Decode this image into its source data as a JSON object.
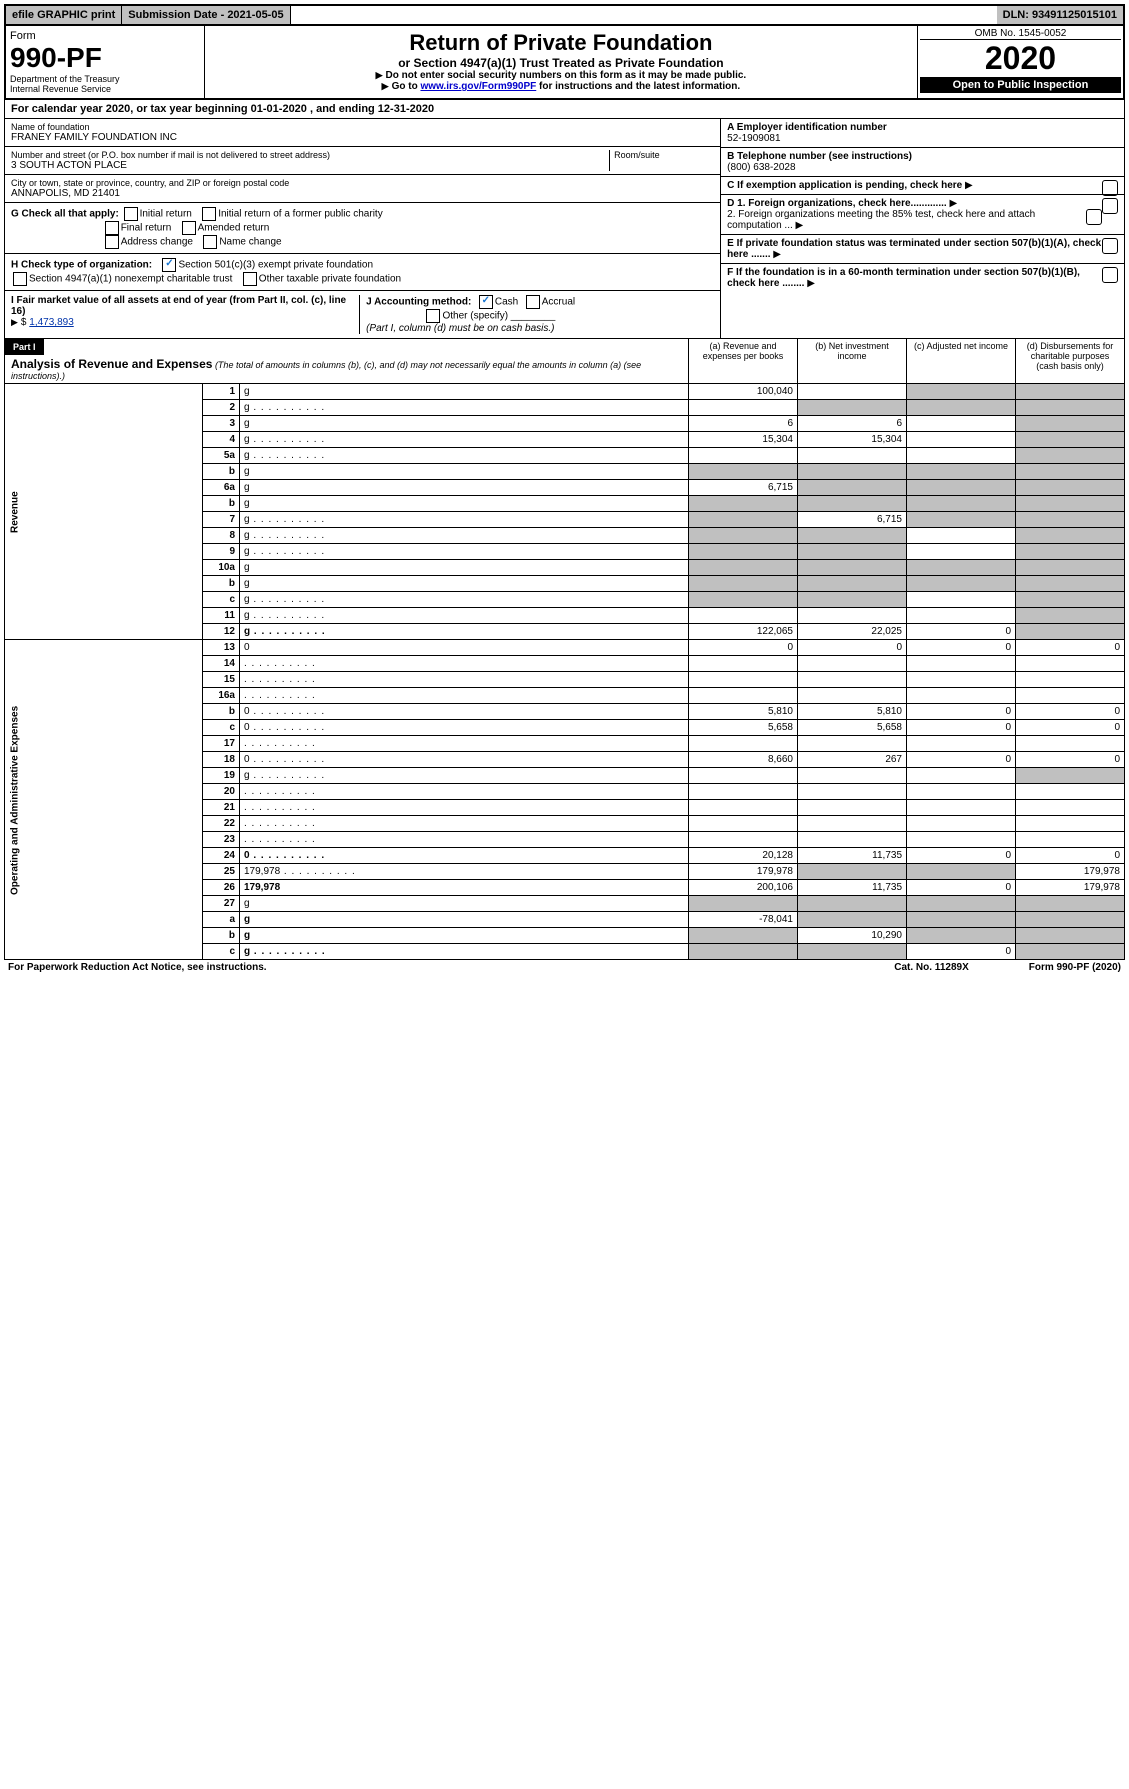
{
  "topbar": {
    "efile": "efile GRAPHIC print",
    "submission": "Submission Date - 2021-05-05",
    "dln": "DLN: 93491125015101"
  },
  "header": {
    "form_label": "Form",
    "form_number": "990-PF",
    "dept": "Department of the Treasury",
    "irs": "Internal Revenue Service",
    "title": "Return of Private Foundation",
    "subtitle": "or Section 4947(a)(1) Trust Treated as Private Foundation",
    "instr1": "Do not enter social security numbers on this form as it may be made public.",
    "instr2_pre": "Go to ",
    "instr2_link": "www.irs.gov/Form990PF",
    "instr2_post": " for instructions and the latest information.",
    "omb": "OMB No. 1545-0052",
    "year": "2020",
    "inspection": "Open to Public Inspection"
  },
  "calendar": "For calendar year 2020, or tax year beginning 01-01-2020                           , and ending 12-31-2020",
  "info": {
    "name_label": "Name of foundation",
    "name": "FRANEY FAMILY FOUNDATION INC",
    "addr_label": "Number and street (or P.O. box number if mail is not delivered to street address)",
    "addr": "3 SOUTH ACTON PLACE",
    "room_label": "Room/suite",
    "city_label": "City or town, state or province, country, and ZIP or foreign postal code",
    "city": "ANNAPOLIS, MD  21401",
    "a_label": "A Employer identification number",
    "ein": "52-1909081",
    "b_label": "B Telephone number (see instructions)",
    "phone": "(800) 638-2028",
    "c_label": "C If exemption application is pending, check here",
    "d1": "D 1. Foreign organizations, check here.............",
    "d2": "2. Foreign organizations meeting the 85% test, check here and attach computation ...",
    "e": "E  If private foundation status was terminated under section 507(b)(1)(A), check here .......",
    "f": "F  If the foundation is in a 60-month termination under section 507(b)(1)(B), check here ........"
  },
  "g": {
    "label": "G Check all that apply:",
    "opts": [
      "Initial return",
      "Initial return of a former public charity",
      "Final return",
      "Amended return",
      "Address change",
      "Name change"
    ]
  },
  "h": {
    "label": "H Check type of organization:",
    "o1": "Section 501(c)(3) exempt private foundation",
    "o2": "Section 4947(a)(1) nonexempt charitable trust",
    "o3": "Other taxable private foundation"
  },
  "i": {
    "label": "I Fair market value of all assets at end of year (from Part II, col. (c), line 16) ",
    "amount": "1,473,893"
  },
  "j": {
    "label": "J Accounting method:",
    "cash": "Cash",
    "accrual": "Accrual",
    "other": "Other (specify)",
    "note": "(Part I, column (d) must be on cash basis.)"
  },
  "part1": {
    "title": "Part I",
    "heading": "Analysis of Revenue and Expenses",
    "heading_note": " (The total of amounts in columns (b), (c), and (d) may not necessarily equal the amounts in column (a) (see instructions).)",
    "cols": {
      "a": "(a)    Revenue and expenses per books",
      "b": "(b)   Net investment income",
      "c": "(c)   Adjusted net income",
      "d": "(d)   Disbursements for charitable purposes (cash basis only)"
    }
  },
  "sections": {
    "revenue": "Revenue",
    "expenses": "Operating and Administrative Expenses"
  },
  "lines": [
    {
      "n": "1",
      "d": "g",
      "a": "100,040",
      "b": "",
      "c": "g"
    },
    {
      "n": "2",
      "d": "g",
      "a": "",
      "b": "g",
      "c": "g",
      "dots": true
    },
    {
      "n": "3",
      "d": "g",
      "a": "6",
      "b": "6",
      "c": ""
    },
    {
      "n": "4",
      "d": "g",
      "a": "15,304",
      "b": "15,304",
      "c": "",
      "dots": true
    },
    {
      "n": "5a",
      "d": "g",
      "a": "",
      "b": "",
      "c": "",
      "dots": true
    },
    {
      "n": "b",
      "d": "g",
      "a": "g",
      "b": "g",
      "c": "g"
    },
    {
      "n": "6a",
      "d": "g",
      "a": "6,715",
      "b": "g",
      "c": "g"
    },
    {
      "n": "b",
      "d": "g",
      "a": "g",
      "b": "g",
      "c": "g"
    },
    {
      "n": "7",
      "d": "g",
      "a": "g",
      "b": "6,715",
      "c": "g",
      "dots": true
    },
    {
      "n": "8",
      "d": "g",
      "a": "g",
      "b": "g",
      "c": "",
      "dots": true
    },
    {
      "n": "9",
      "d": "g",
      "a": "g",
      "b": "g",
      "c": "",
      "dots": true
    },
    {
      "n": "10a",
      "d": "g",
      "a": "g",
      "b": "g",
      "c": "g"
    },
    {
      "n": "b",
      "d": "g",
      "a": "g",
      "b": "g",
      "c": "g"
    },
    {
      "n": "c",
      "d": "g",
      "a": "g",
      "b": "g",
      "c": "",
      "dots": true
    },
    {
      "n": "11",
      "d": "g",
      "a": "",
      "b": "",
      "c": "",
      "dots": true
    },
    {
      "n": "12",
      "d": "g",
      "a": "122,065",
      "b": "22,025",
      "c": "0",
      "bold": true,
      "dots": true
    },
    {
      "n": "13",
      "d": "0",
      "a": "0",
      "b": "0",
      "c": "0"
    },
    {
      "n": "14",
      "d": "",
      "a": "",
      "b": "",
      "c": "",
      "dots": true
    },
    {
      "n": "15",
      "d": "",
      "a": "",
      "b": "",
      "c": "",
      "dots": true
    },
    {
      "n": "16a",
      "d": "",
      "a": "",
      "b": "",
      "c": "",
      "dots": true
    },
    {
      "n": "b",
      "d": "0",
      "a": "5,810",
      "b": "5,810",
      "c": "0",
      "dots": true
    },
    {
      "n": "c",
      "d": "0",
      "a": "5,658",
      "b": "5,658",
      "c": "0",
      "dots": true
    },
    {
      "n": "17",
      "d": "",
      "a": "",
      "b": "",
      "c": "",
      "dots": true
    },
    {
      "n": "18",
      "d": "0",
      "a": "8,660",
      "b": "267",
      "c": "0",
      "dots": true
    },
    {
      "n": "19",
      "d": "g",
      "a": "",
      "b": "",
      "c": "",
      "dots": true
    },
    {
      "n": "20",
      "d": "",
      "a": "",
      "b": "",
      "c": "",
      "dots": true
    },
    {
      "n": "21",
      "d": "",
      "a": "",
      "b": "",
      "c": "",
      "dots": true
    },
    {
      "n": "22",
      "d": "",
      "a": "",
      "b": "",
      "c": "",
      "dots": true
    },
    {
      "n": "23",
      "d": "",
      "a": "",
      "b": "",
      "c": "",
      "dots": true
    },
    {
      "n": "24",
      "d": "0",
      "a": "20,128",
      "b": "11,735",
      "c": "0",
      "bold": true,
      "dots": true
    },
    {
      "n": "25",
      "d": "179,978",
      "a": "179,978",
      "b": "g",
      "c": "g",
      "dots": true
    },
    {
      "n": "26",
      "d": "179,978",
      "a": "200,106",
      "b": "11,735",
      "c": "0",
      "bold": true
    },
    {
      "n": "27",
      "d": "g",
      "a": "g",
      "b": "g",
      "c": "g"
    },
    {
      "n": "a",
      "d": "g",
      "a": "-78,041",
      "b": "g",
      "c": "g",
      "bold": true
    },
    {
      "n": "b",
      "d": "g",
      "a": "g",
      "b": "10,290",
      "c": "g",
      "bold": true
    },
    {
      "n": "c",
      "d": "g",
      "a": "g",
      "b": "g",
      "c": "0",
      "bold": true,
      "dots": true
    }
  ],
  "footer": {
    "left": "For Paperwork Reduction Act Notice, see instructions.",
    "center": "Cat. No. 11289X",
    "right": "Form 990-PF (2020)"
  }
}
